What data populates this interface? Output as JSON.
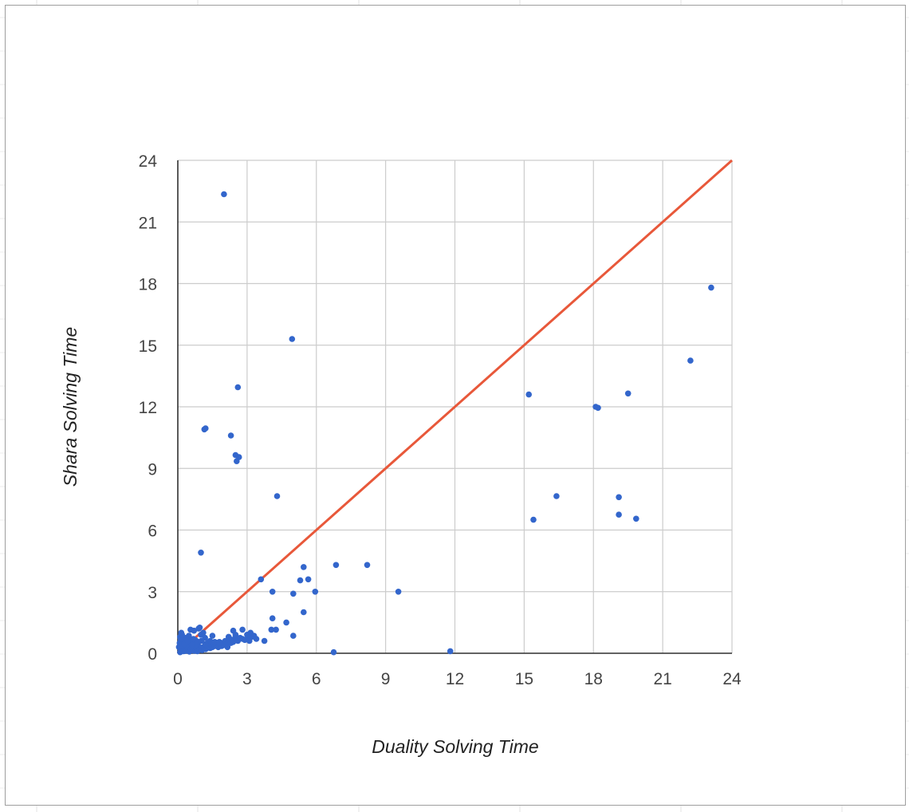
{
  "chart_data": {
    "type": "scatter",
    "title": "",
    "xlabel": "Duality Solving Time",
    "ylabel": "Shara Solving Time",
    "xlim": [
      0,
      24
    ],
    "ylim": [
      0,
      24
    ],
    "xticks": [
      "0",
      "3",
      "6",
      "9",
      "12",
      "15",
      "18",
      "21",
      "24"
    ],
    "yticks": [
      "0",
      "3",
      "6",
      "9",
      "12",
      "15",
      "18",
      "21",
      "24"
    ],
    "grid": true,
    "legend": "none",
    "colors": {
      "points": "#3366cc",
      "line": "#e8583a",
      "grid": "#cccccc",
      "axis": "#333333"
    },
    "trendline": {
      "type": "line",
      "from": [
        0,
        0
      ],
      "to": [
        24,
        24
      ]
    },
    "series": [
      {
        "points": [
          [
            0.1,
            0.05
          ],
          [
            0.15,
            0.1
          ],
          [
            0.2,
            0.15
          ],
          [
            0.25,
            0.1
          ],
          [
            0.3,
            0.2
          ],
          [
            0.35,
            0.12
          ],
          [
            0.4,
            0.18
          ],
          [
            0.45,
            0.25
          ],
          [
            0.5,
            0.08
          ],
          [
            0.55,
            0.22
          ],
          [
            0.6,
            0.3
          ],
          [
            0.65,
            0.15
          ],
          [
            0.7,
            0.12
          ],
          [
            0.75,
            0.2
          ],
          [
            0.8,
            0.28
          ],
          [
            0.85,
            0.1
          ],
          [
            0.9,
            0.35
          ],
          [
            0.95,
            0.18
          ],
          [
            1.0,
            0.25
          ],
          [
            1.05,
            0.15
          ],
          [
            1.1,
            0.3
          ],
          [
            1.15,
            0.22
          ],
          [
            1.2,
            0.2
          ],
          [
            1.25,
            0.35
          ],
          [
            1.3,
            0.28
          ],
          [
            1.35,
            0.32
          ],
          [
            1.4,
            0.25
          ],
          [
            1.45,
            0.4
          ],
          [
            1.5,
            0.3
          ],
          [
            1.55,
            0.45
          ],
          [
            1.6,
            0.35
          ],
          [
            1.65,
            0.5
          ],
          [
            1.7,
            0.4
          ],
          [
            1.75,
            0.3
          ],
          [
            1.8,
            0.55
          ],
          [
            1.85,
            0.45
          ],
          [
            1.9,
            0.35
          ],
          [
            1.95,
            0.5
          ],
          [
            2.0,
            0.4
          ],
          [
            2.05,
            0.6
          ],
          [
            2.1,
            0.45
          ],
          [
            2.15,
            0.3
          ],
          [
            2.2,
            0.55
          ],
          [
            2.25,
            0.7
          ],
          [
            2.3,
            0.5
          ],
          [
            2.35,
            0.65
          ],
          [
            2.4,
            0.55
          ],
          [
            2.5,
            0.8
          ],
          [
            2.6,
            0.6
          ],
          [
            2.7,
            0.75
          ],
          [
            2.8,
            0.7
          ],
          [
            2.9,
            0.65
          ],
          [
            3.0,
            0.9
          ],
          [
            3.05,
            0.75
          ],
          [
            3.1,
            0.6
          ],
          [
            3.15,
            1.0
          ],
          [
            3.2,
            0.8
          ],
          [
            3.3,
            0.85
          ],
          [
            3.4,
            0.7
          ],
          [
            0.1,
            0.8
          ],
          [
            0.15,
            1.0
          ],
          [
            0.2,
            0.6
          ],
          [
            0.3,
            0.5
          ],
          [
            0.35,
            0.75
          ],
          [
            0.4,
            0.4
          ],
          [
            0.5,
            0.7
          ],
          [
            0.55,
            1.15
          ],
          [
            0.6,
            0.5
          ],
          [
            0.7,
            1.1
          ],
          [
            0.75,
            0.65
          ],
          [
            0.8,
            0.6
          ],
          [
            0.9,
            1.2
          ],
          [
            0.95,
            1.25
          ],
          [
            1.0,
            0.9
          ],
          [
            1.1,
            1.0
          ],
          [
            1.2,
            0.45
          ],
          [
            1.3,
            0.5
          ],
          [
            1.4,
            0.6
          ],
          [
            1.5,
            0.85
          ],
          [
            1.6,
            0.55
          ],
          [
            1.8,
            0.5
          ],
          [
            2.2,
            0.8
          ],
          [
            2.4,
            1.1
          ],
          [
            2.5,
            0.9
          ],
          [
            2.8,
            1.15
          ],
          [
            0.05,
            0.3
          ],
          [
            0.08,
            0.5
          ],
          [
            0.12,
            0.7
          ],
          [
            0.18,
            0.9
          ],
          [
            0.22,
            0.35
          ],
          [
            0.28,
            0.45
          ],
          [
            0.42,
            0.6
          ],
          [
            0.48,
            0.85
          ],
          [
            0.62,
            0.4
          ],
          [
            0.68,
            0.7
          ],
          [
            0.82,
            0.45
          ],
          [
            0.88,
            0.55
          ],
          [
            1.02,
            0.6
          ],
          [
            1.18,
            0.75
          ],
          [
            2.0,
            22.35
          ],
          [
            4.95,
            15.3
          ],
          [
            2.6,
            12.95
          ],
          [
            1.15,
            10.9
          ],
          [
            1.2,
            10.95
          ],
          [
            2.3,
            10.6
          ],
          [
            2.5,
            9.65
          ],
          [
            2.55,
            9.35
          ],
          [
            2.65,
            9.55
          ],
          [
            4.3,
            7.65
          ],
          [
            1.0,
            4.9
          ],
          [
            3.6,
            3.6
          ],
          [
            4.1,
            3.0
          ],
          [
            5.0,
            2.9
          ],
          [
            5.3,
            3.55
          ],
          [
            5.45,
            4.2
          ],
          [
            5.65,
            3.6
          ],
          [
            5.95,
            3.0
          ],
          [
            6.85,
            4.3
          ],
          [
            8.2,
            4.3
          ],
          [
            9.55,
            3.0
          ],
          [
            4.1,
            1.7
          ],
          [
            5.45,
            2.0
          ],
          [
            4.05,
            1.15
          ],
          [
            4.25,
            1.15
          ],
          [
            4.7,
            1.5
          ],
          [
            5.0,
            0.85
          ],
          [
            3.75,
            0.6
          ],
          [
            6.75,
            0.05
          ],
          [
            11.8,
            0.1
          ],
          [
            15.2,
            12.6
          ],
          [
            15.4,
            6.5
          ],
          [
            16.4,
            7.65
          ],
          [
            18.1,
            12.0
          ],
          [
            18.2,
            11.95
          ],
          [
            19.5,
            12.65
          ],
          [
            19.1,
            7.6
          ],
          [
            19.1,
            6.75
          ],
          [
            19.85,
            6.55
          ],
          [
            22.2,
            14.25
          ],
          [
            23.1,
            17.8
          ]
        ]
      }
    ]
  }
}
